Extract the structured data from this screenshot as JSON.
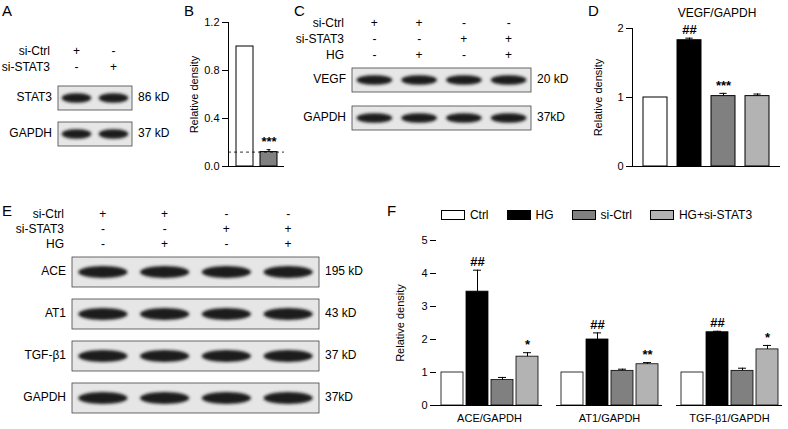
{
  "chart_data": [
    {
      "panel": "B",
      "type": "bar",
      "categories": [
        null,
        null
      ],
      "values": [
        1,
        0.12
      ],
      "errors": [
        0,
        0.02
      ],
      "annotations": [
        null,
        "***"
      ],
      "colors": [
        "#ffffff",
        "#808080"
      ],
      "reference_line": 0.12,
      "y_label": "Relative density",
      "ylim": [
        0,
        1.2
      ],
      "yticks": [
        {
          "value": 0,
          "label": "0.0"
        },
        0.4,
        0.8,
        1.2
      ]
    },
    {
      "panel": "D",
      "type": "bar",
      "title": "VEGF/GAPDH",
      "categories": [
        null,
        null,
        null,
        null
      ],
      "values": [
        1,
        1.83,
        1.02,
        1.02
      ],
      "errors": [
        0,
        0.03,
        0.04,
        0.03
      ],
      "annotations": [
        null,
        "##",
        "***",
        null
      ],
      "colors": [
        "#ffffff",
        "#000000",
        "#808080",
        "#b3b3b3"
      ],
      "y_label": "Relative density",
      "ylim": [
        0,
        2
      ],
      "yticks": [
        0,
        1,
        2
      ]
    },
    {
      "panel": "F",
      "type": "bar",
      "legend": "top",
      "categories": [
        "ACE/GAPDH",
        "AT1/GAPDH",
        "TGF-β1/GAPDH"
      ],
      "series": [
        {
          "name": "Ctrl",
          "color": "#ffffff",
          "values": [
            1,
            1,
            1
          ],
          "errors": [
            0,
            0,
            0
          ]
        },
        {
          "name": "HG",
          "color": "#000000",
          "values": [
            3.45,
            2.0,
            2.22
          ],
          "errors": [
            0.65,
            0.2,
            0.03
          ],
          "annotations": [
            "##",
            "##",
            "##"
          ]
        },
        {
          "name": "si-Ctrl",
          "color": "#808080",
          "values": [
            0.77,
            1.05,
            1.05
          ],
          "errors": [
            0.08,
            0.05,
            0.08
          ]
        },
        {
          "name": "HG+si-STAT3",
          "color": "#b3b3b3",
          "values": [
            1.48,
            1.25,
            1.7
          ],
          "errors": [
            0.12,
            0.05,
            0.12
          ],
          "annotations": [
            "*",
            "**",
            "*"
          ]
        }
      ],
      "y_label": "Relative density",
      "ylim": [
        0,
        5
      ],
      "yticks": [
        0,
        1,
        2,
        3,
        4,
        5
      ]
    }
  ],
  "blots": [
    {
      "panel": "A",
      "conditions": [
        {
          "name": "si-Ctrl",
          "values": [
            "+",
            "-"
          ]
        },
        {
          "name": "si-STAT3",
          "values": [
            "-",
            "+"
          ]
        }
      ],
      "bands": [
        {
          "name": "STAT3",
          "size": "86 kD"
        },
        {
          "name": "GAPDH",
          "size": "37 kD"
        }
      ]
    },
    {
      "panel": "C",
      "conditions": [
        {
          "name": "si-Ctrl",
          "values": [
            "+",
            "+",
            "-",
            "-"
          ]
        },
        {
          "name": "si-STAT3",
          "values": [
            "-",
            "-",
            "+",
            "+"
          ]
        },
        {
          "name": "HG",
          "values": [
            "-",
            "+",
            "-",
            "+"
          ]
        }
      ],
      "bands": [
        {
          "name": "VEGF",
          "size": "20 kD"
        },
        {
          "name": "GAPDH",
          "size": "37kD"
        }
      ]
    },
    {
      "panel": "E",
      "conditions": [
        {
          "name": "si-Ctrl",
          "values": [
            "+",
            "+",
            "-",
            "-"
          ]
        },
        {
          "name": "si-STAT3",
          "values": [
            "-",
            "-",
            "+",
            "+"
          ]
        },
        {
          "name": "HG",
          "values": [
            "-",
            "+",
            "-",
            "+"
          ]
        }
      ],
      "bands": [
        {
          "name": "ACE",
          "size": "195 kD"
        },
        {
          "name": "AT1",
          "size": "43 kD"
        },
        {
          "name": "TGF-β1",
          "size": "37 kD"
        },
        {
          "name": "GAPDH",
          "size": "37kD"
        }
      ]
    }
  ]
}
